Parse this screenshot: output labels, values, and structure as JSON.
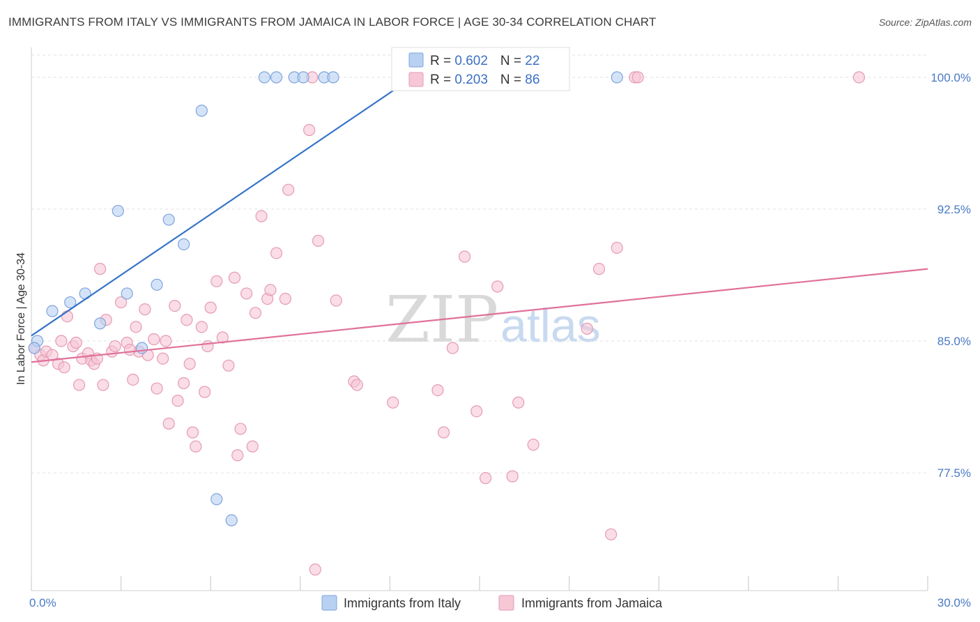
{
  "title": "IMMIGRANTS FROM ITALY VS IMMIGRANTS FROM JAMAICA IN LABOR FORCE | AGE 30-34 CORRELATION CHART",
  "source": "Source: ZipAtlas.com",
  "watermark": {
    "zip": "ZIP",
    "atlas": "atlas"
  },
  "colors": {
    "italy_fill": "#b8d0f2",
    "italy_stroke": "#7ea4dc",
    "italy_line": "#3473c8",
    "jamaica_fill": "#f7c7d6",
    "jamaica_stroke": "#e59ab4",
    "jamaica_line": "#e0709a",
    "grid": "#e2e2e2",
    "axis_text": "#4a79c4"
  },
  "chart_data": {
    "type": "scatter",
    "title": "IMMIGRANTS FROM ITALY VS IMMIGRANTS FROM JAMAICA IN LABOR FORCE | AGE 30-34 CORRELATION CHART",
    "xlabel": "",
    "ylabel": "In Labor Force | Age 30-34",
    "xlim": [
      0,
      30
    ],
    "ylim": [
      70.8,
      101.7
    ],
    "x_tick_labels": [
      "0.0%",
      "30.0%"
    ],
    "y_ticks": [
      77.5,
      85.0,
      92.5,
      100.0
    ],
    "y_tick_labels": [
      "77.5%",
      "85.0%",
      "92.5%",
      "100.0%"
    ],
    "legend": [
      {
        "name": "Immigrants from Italy",
        "r_label": "R = ",
        "r": "0.602",
        "n_label": "N = ",
        "n": "22"
      },
      {
        "name": "Immigrants from Jamaica",
        "r_label": "R = ",
        "r": "0.203",
        "n_label": "N = ",
        "n": "86"
      }
    ],
    "series": [
      {
        "name": "Immigrants from Italy",
        "trend": {
          "x": [
            0.0,
            13.2
          ],
          "y": [
            85.3,
            100.5
          ]
        },
        "points": [
          [
            0.2,
            85.0
          ],
          [
            0.1,
            84.6
          ],
          [
            0.7,
            86.7
          ],
          [
            1.3,
            87.2
          ],
          [
            1.8,
            87.7
          ],
          [
            2.3,
            86.0
          ],
          [
            2.9,
            92.4
          ],
          [
            3.2,
            87.7
          ],
          [
            3.7,
            84.6
          ],
          [
            4.2,
            88.2
          ],
          [
            4.6,
            91.9
          ],
          [
            5.1,
            90.5
          ],
          [
            5.7,
            98.1
          ],
          [
            6.2,
            76.0
          ],
          [
            6.7,
            74.8
          ],
          [
            7.8,
            100.0
          ],
          [
            8.2,
            100.0
          ],
          [
            8.8,
            100.0
          ],
          [
            9.1,
            100.0
          ],
          [
            9.8,
            100.0
          ],
          [
            10.1,
            100.0
          ],
          [
            19.6,
            100.0
          ]
        ]
      },
      {
        "name": "Immigrants from Jamaica",
        "trend": {
          "x": [
            0.0,
            30.0
          ],
          "y": [
            83.8,
            89.1
          ]
        },
        "points": [
          [
            0.1,
            84.6
          ],
          [
            0.3,
            84.2
          ],
          [
            0.4,
            83.9
          ],
          [
            0.5,
            84.4
          ],
          [
            0.7,
            84.2
          ],
          [
            0.9,
            83.7
          ],
          [
            1.1,
            83.5
          ],
          [
            1.2,
            86.4
          ],
          [
            1.4,
            84.7
          ],
          [
            1.5,
            84.9
          ],
          [
            1.6,
            82.5
          ],
          [
            1.7,
            84.0
          ],
          [
            1.9,
            84.3
          ],
          [
            2.0,
            83.9
          ],
          [
            2.1,
            83.7
          ],
          [
            2.3,
            89.1
          ],
          [
            2.4,
            82.5
          ],
          [
            2.5,
            86.2
          ],
          [
            2.7,
            84.4
          ],
          [
            2.8,
            84.7
          ],
          [
            3.0,
            87.2
          ],
          [
            3.2,
            84.9
          ],
          [
            3.4,
            82.8
          ],
          [
            3.5,
            85.8
          ],
          [
            3.6,
            84.4
          ],
          [
            3.8,
            86.8
          ],
          [
            3.9,
            84.2
          ],
          [
            4.1,
            85.1
          ],
          [
            4.2,
            82.3
          ],
          [
            4.4,
            84.0
          ],
          [
            4.5,
            85.0
          ],
          [
            4.6,
            80.3
          ],
          [
            4.8,
            87.0
          ],
          [
            4.9,
            81.6
          ],
          [
            5.1,
            82.6
          ],
          [
            5.2,
            86.2
          ],
          [
            5.3,
            83.7
          ],
          [
            5.4,
            79.8
          ],
          [
            5.5,
            79.0
          ],
          [
            5.7,
            85.8
          ],
          [
            5.8,
            82.1
          ],
          [
            5.9,
            84.7
          ],
          [
            6.0,
            86.9
          ],
          [
            6.2,
            88.4
          ],
          [
            6.4,
            85.2
          ],
          [
            6.6,
            83.6
          ],
          [
            6.8,
            88.6
          ],
          [
            6.9,
            78.5
          ],
          [
            7.0,
            80.0
          ],
          [
            7.2,
            87.7
          ],
          [
            7.4,
            79.0
          ],
          [
            7.5,
            86.6
          ],
          [
            7.7,
            92.1
          ],
          [
            7.9,
            87.4
          ],
          [
            8.0,
            87.9
          ],
          [
            8.2,
            90.0
          ],
          [
            8.5,
            87.4
          ],
          [
            8.6,
            93.6
          ],
          [
            9.3,
            97.0
          ],
          [
            9.4,
            100.0
          ],
          [
            9.5,
            72.0
          ],
          [
            9.6,
            90.7
          ],
          [
            10.2,
            87.3
          ],
          [
            10.8,
            82.7
          ],
          [
            10.9,
            82.5
          ],
          [
            12.1,
            81.5
          ],
          [
            13.6,
            82.2
          ],
          [
            13.8,
            79.8
          ],
          [
            14.1,
            84.6
          ],
          [
            14.5,
            89.8
          ],
          [
            14.9,
            81.0
          ],
          [
            15.2,
            77.2
          ],
          [
            15.6,
            88.1
          ],
          [
            16.1,
            77.3
          ],
          [
            16.3,
            81.5
          ],
          [
            16.8,
            79.1
          ],
          [
            18.6,
            85.7
          ],
          [
            19.0,
            89.1
          ],
          [
            19.4,
            74.0
          ],
          [
            19.6,
            90.3
          ],
          [
            20.2,
            100.0
          ],
          [
            20.3,
            100.0
          ],
          [
            27.7,
            100.0
          ],
          [
            1.0,
            85.0
          ],
          [
            3.3,
            84.5
          ],
          [
            2.2,
            84.0
          ]
        ]
      }
    ]
  },
  "bottom_legend": {
    "italy": "Immigrants from Italy",
    "jamaica": "Immigrants from Jamaica"
  }
}
